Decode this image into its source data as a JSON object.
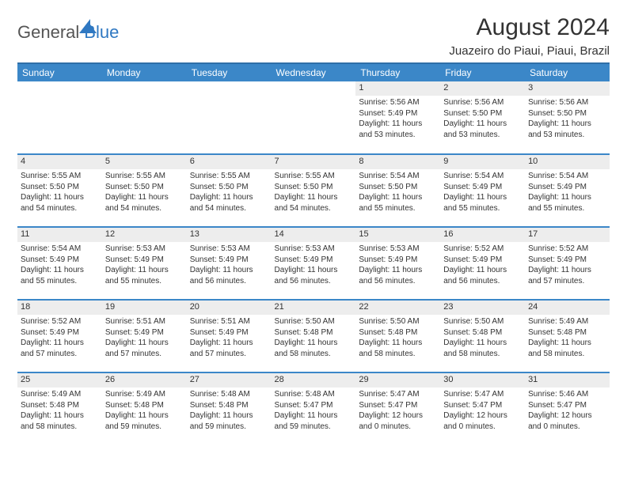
{
  "logo": {
    "text_general": "General",
    "text_blue": "Blue"
  },
  "title": "August 2024",
  "location": "Juazeiro do Piaui, Piaui, Brazil",
  "colors": {
    "header_bg": "#3b87c8",
    "header_border": "#2f6fa8",
    "row_border": "#3b87c8",
    "daynum_bg": "#ededed",
    "text": "#333333",
    "logo_gray": "#555555",
    "logo_blue": "#2f78c2",
    "page_bg": "#ffffff"
  },
  "fonts": {
    "title_size": 30,
    "location_size": 15,
    "dayname_size": 12,
    "daynum_size": 11,
    "body_size": 10
  },
  "day_names": [
    "Sunday",
    "Monday",
    "Tuesday",
    "Wednesday",
    "Thursday",
    "Friday",
    "Saturday"
  ],
  "weeks": [
    [
      {
        "blank": true
      },
      {
        "blank": true
      },
      {
        "blank": true
      },
      {
        "blank": true
      },
      {
        "num": "1",
        "sunrise": "5:56 AM",
        "sunset": "5:49 PM",
        "daylight": "11 hours and 53 minutes."
      },
      {
        "num": "2",
        "sunrise": "5:56 AM",
        "sunset": "5:50 PM",
        "daylight": "11 hours and 53 minutes."
      },
      {
        "num": "3",
        "sunrise": "5:56 AM",
        "sunset": "5:50 PM",
        "daylight": "11 hours and 53 minutes."
      }
    ],
    [
      {
        "num": "4",
        "sunrise": "5:55 AM",
        "sunset": "5:50 PM",
        "daylight": "11 hours and 54 minutes."
      },
      {
        "num": "5",
        "sunrise": "5:55 AM",
        "sunset": "5:50 PM",
        "daylight": "11 hours and 54 minutes."
      },
      {
        "num": "6",
        "sunrise": "5:55 AM",
        "sunset": "5:50 PM",
        "daylight": "11 hours and 54 minutes."
      },
      {
        "num": "7",
        "sunrise": "5:55 AM",
        "sunset": "5:50 PM",
        "daylight": "11 hours and 54 minutes."
      },
      {
        "num": "8",
        "sunrise": "5:54 AM",
        "sunset": "5:50 PM",
        "daylight": "11 hours and 55 minutes."
      },
      {
        "num": "9",
        "sunrise": "5:54 AM",
        "sunset": "5:49 PM",
        "daylight": "11 hours and 55 minutes."
      },
      {
        "num": "10",
        "sunrise": "5:54 AM",
        "sunset": "5:49 PM",
        "daylight": "11 hours and 55 minutes."
      }
    ],
    [
      {
        "num": "11",
        "sunrise": "5:54 AM",
        "sunset": "5:49 PM",
        "daylight": "11 hours and 55 minutes."
      },
      {
        "num": "12",
        "sunrise": "5:53 AM",
        "sunset": "5:49 PM",
        "daylight": "11 hours and 55 minutes."
      },
      {
        "num": "13",
        "sunrise": "5:53 AM",
        "sunset": "5:49 PM",
        "daylight": "11 hours and 56 minutes."
      },
      {
        "num": "14",
        "sunrise": "5:53 AM",
        "sunset": "5:49 PM",
        "daylight": "11 hours and 56 minutes."
      },
      {
        "num": "15",
        "sunrise": "5:53 AM",
        "sunset": "5:49 PM",
        "daylight": "11 hours and 56 minutes."
      },
      {
        "num": "16",
        "sunrise": "5:52 AM",
        "sunset": "5:49 PM",
        "daylight": "11 hours and 56 minutes."
      },
      {
        "num": "17",
        "sunrise": "5:52 AM",
        "sunset": "5:49 PM",
        "daylight": "11 hours and 57 minutes."
      }
    ],
    [
      {
        "num": "18",
        "sunrise": "5:52 AM",
        "sunset": "5:49 PM",
        "daylight": "11 hours and 57 minutes."
      },
      {
        "num": "19",
        "sunrise": "5:51 AM",
        "sunset": "5:49 PM",
        "daylight": "11 hours and 57 minutes."
      },
      {
        "num": "20",
        "sunrise": "5:51 AM",
        "sunset": "5:49 PM",
        "daylight": "11 hours and 57 minutes."
      },
      {
        "num": "21",
        "sunrise": "5:50 AM",
        "sunset": "5:48 PM",
        "daylight": "11 hours and 58 minutes."
      },
      {
        "num": "22",
        "sunrise": "5:50 AM",
        "sunset": "5:48 PM",
        "daylight": "11 hours and 58 minutes."
      },
      {
        "num": "23",
        "sunrise": "5:50 AM",
        "sunset": "5:48 PM",
        "daylight": "11 hours and 58 minutes."
      },
      {
        "num": "24",
        "sunrise": "5:49 AM",
        "sunset": "5:48 PM",
        "daylight": "11 hours and 58 minutes."
      }
    ],
    [
      {
        "num": "25",
        "sunrise": "5:49 AM",
        "sunset": "5:48 PM",
        "daylight": "11 hours and 58 minutes."
      },
      {
        "num": "26",
        "sunrise": "5:49 AM",
        "sunset": "5:48 PM",
        "daylight": "11 hours and 59 minutes."
      },
      {
        "num": "27",
        "sunrise": "5:48 AM",
        "sunset": "5:48 PM",
        "daylight": "11 hours and 59 minutes."
      },
      {
        "num": "28",
        "sunrise": "5:48 AM",
        "sunset": "5:47 PM",
        "daylight": "11 hours and 59 minutes."
      },
      {
        "num": "29",
        "sunrise": "5:47 AM",
        "sunset": "5:47 PM",
        "daylight": "12 hours and 0 minutes."
      },
      {
        "num": "30",
        "sunrise": "5:47 AM",
        "sunset": "5:47 PM",
        "daylight": "12 hours and 0 minutes."
      },
      {
        "num": "31",
        "sunrise": "5:46 AM",
        "sunset": "5:47 PM",
        "daylight": "12 hours and 0 minutes."
      }
    ]
  ],
  "labels": {
    "sunrise_prefix": "Sunrise: ",
    "sunset_prefix": "Sunset: ",
    "daylight_prefix": "Daylight: "
  }
}
